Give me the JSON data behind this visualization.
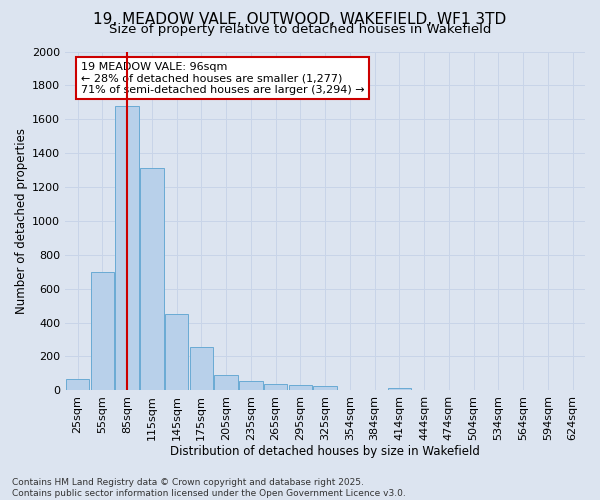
{
  "title": "19, MEADOW VALE, OUTWOOD, WAKEFIELD, WF1 3TD",
  "subtitle": "Size of property relative to detached houses in Wakefield",
  "xlabel": "Distribution of detached houses by size in Wakefield",
  "ylabel": "Number of detached properties",
  "categories": [
    "25sqm",
    "55sqm",
    "85sqm",
    "115sqm",
    "145sqm",
    "175sqm",
    "205sqm",
    "235sqm",
    "265sqm",
    "295sqm",
    "325sqm",
    "354sqm",
    "384sqm",
    "414sqm",
    "444sqm",
    "474sqm",
    "504sqm",
    "534sqm",
    "564sqm",
    "594sqm",
    "624sqm"
  ],
  "values": [
    65,
    700,
    1680,
    1310,
    450,
    255,
    90,
    55,
    40,
    30,
    25,
    0,
    0,
    15,
    0,
    0,
    0,
    0,
    0,
    0,
    0
  ],
  "bar_color": "#b8d0ea",
  "bar_edge_color": "#6aaad4",
  "red_line_x": 2.0,
  "annotation_text": "19 MEADOW VALE: 96sqm\n← 28% of detached houses are smaller (1,277)\n71% of semi-detached houses are larger (3,294) →",
  "annotation_box_color": "#ffffff",
  "annotation_box_edge": "#cc0000",
  "ylim": [
    0,
    2000
  ],
  "yticks": [
    0,
    200,
    400,
    600,
    800,
    1000,
    1200,
    1400,
    1600,
    1800,
    2000
  ],
  "grid_color": "#c8d4e8",
  "background_color": "#dce4f0",
  "footer_text": "Contains HM Land Registry data © Crown copyright and database right 2025.\nContains public sector information licensed under the Open Government Licence v3.0.",
  "title_fontsize": 11,
  "subtitle_fontsize": 9.5,
  "xlabel_fontsize": 8.5,
  "ylabel_fontsize": 8.5,
  "footer_fontsize": 6.5,
  "tick_fontsize": 8,
  "annot_fontsize": 8
}
